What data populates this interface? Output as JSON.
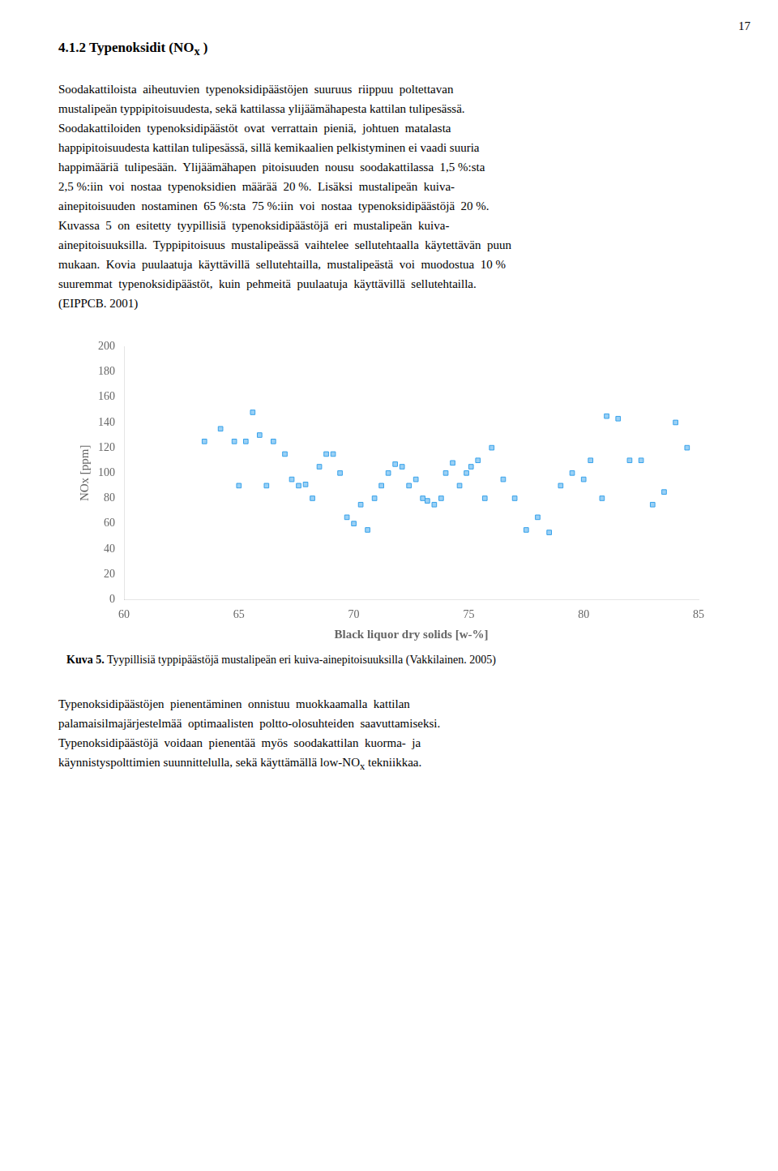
{
  "page_number": "17",
  "heading": "4.1.2 Typenoksidit (NO",
  "heading_subscript": "x",
  "heading_end": " )",
  "paragraph1": [
    "Soodakattiloista  aiheutuvien  typenoksidipäästöjen  suuruus  riippuu  poltettavan",
    "mustalipeän typpipitoisuudesta, sekä kattilassa ylijäämähapesta kattilan tulipesässä.",
    "Soodakattiloiden  typenoksidipäästöt  ovat  verrattain  pieniä,  johtuen  matalasta",
    "happipitoisuudesta kattilan tulipesässä, sillä kemikaalien pelkistyminen ei vaadi suuria",
    "happimääriä  tulipesään.  Ylijäämähapen  pitoisuuden  nousu  soodakattilassa  1,5 %:sta",
    "2,5 %:iin  voi  nostaa  typenoksidien  määrää  20 %.  Lisäksi  mustalipeän  kuiva-",
    "ainepitoisuuden  nostaminen  65 %:sta  75 %:iin  voi  nostaa  typenoksidipäästöjä  20 %.",
    "Kuvassa  5  on  esitetty  tyypillisiä  typenoksidipäästöjä  eri  mustalipeän  kuiva-",
    "ainepitoisuuksilla.  Typpipitoisuus  mustalipeässä  vaihtelee  sellutehtaalla  käytettävän  puun",
    "mukaan.  Kovia  puulaatuja  käyttävillä  sellutehtailla,  mustalipeästä  voi  muodostua  10 %",
    "suuremmat  typenoksidipäästöt,  kuin  pehmeitä  puulaatuja  käyttävillä  sellutehtailla.",
    "(EIPPCB. 2001)"
  ],
  "caption_bold": "Kuva 5.",
  "caption": " Tyypillisiä typpipäästöjä mustalipeän eri kuiva-ainepitoisuuksilla (Vakkilainen. 2005)",
  "paragraph2": [
    "Typenoksidipäästöjen  pienentäminen  onnistuu  muokkaamalla  kattilan",
    "palamaisilmajärjestelmää  optimaalisten  poltto-olosuhteiden  saavuttamiseksi.",
    "Typenoksidipäästöjä  voidaan  pienentää  myös  soodakattilan  kuorma-  ja",
    "käynnistyspolttimien suunnittelulla, sekä käyttämällä low-NO"
  ],
  "paragraph2_subscript": "x",
  "paragraph2_end": " tekniikkaa.",
  "chart_data": {
    "type": "scatter",
    "x": [
      63.5,
      64.2,
      64.8,
      65.0,
      65.3,
      65.6,
      65.9,
      66.2,
      66.5,
      67.0,
      67.3,
      67.6,
      67.9,
      68.2,
      68.5,
      68.8,
      69.1,
      69.4,
      69.7,
      70.0,
      70.3,
      70.6,
      70.9,
      71.2,
      71.5,
      71.8,
      72.1,
      72.4,
      72.7,
      73.0,
      73.2,
      73.5,
      73.8,
      74.0,
      74.3,
      74.6,
      74.9,
      75.1,
      75.4,
      75.7,
      76.0,
      76.5,
      77.0,
      77.5,
      78.0,
      78.5,
      79.0,
      79.5,
      80.0,
      80.3,
      80.8,
      81.0,
      81.5,
      82.0,
      82.5,
      83.0,
      83.5,
      84.0,
      84.5
    ],
    "values": [
      125,
      135,
      125,
      90,
      125,
      148,
      130,
      90,
      125,
      115,
      95,
      90,
      91,
      80,
      105,
      115,
      115,
      100,
      65,
      60,
      75,
      55,
      80,
      90,
      100,
      107,
      105,
      90,
      95,
      80,
      78,
      75,
      80,
      100,
      108,
      90,
      100,
      105,
      110,
      80,
      120,
      95,
      80,
      55,
      65,
      53,
      90,
      100,
      95,
      110,
      80,
      145,
      143,
      110,
      110,
      75,
      85,
      140,
      120
    ],
    "xlabel": "Black liquor dry solids [w-%]",
    "ylabel": "NOx [ppm]",
    "xlim": [
      60,
      85
    ],
    "ylim": [
      0,
      200
    ],
    "xticks": [
      60,
      65,
      70,
      75,
      80,
      85
    ],
    "yticks": [
      0,
      20,
      40,
      60,
      80,
      100,
      120,
      140,
      160,
      180,
      200
    ],
    "marker": "square",
    "grid": false
  }
}
